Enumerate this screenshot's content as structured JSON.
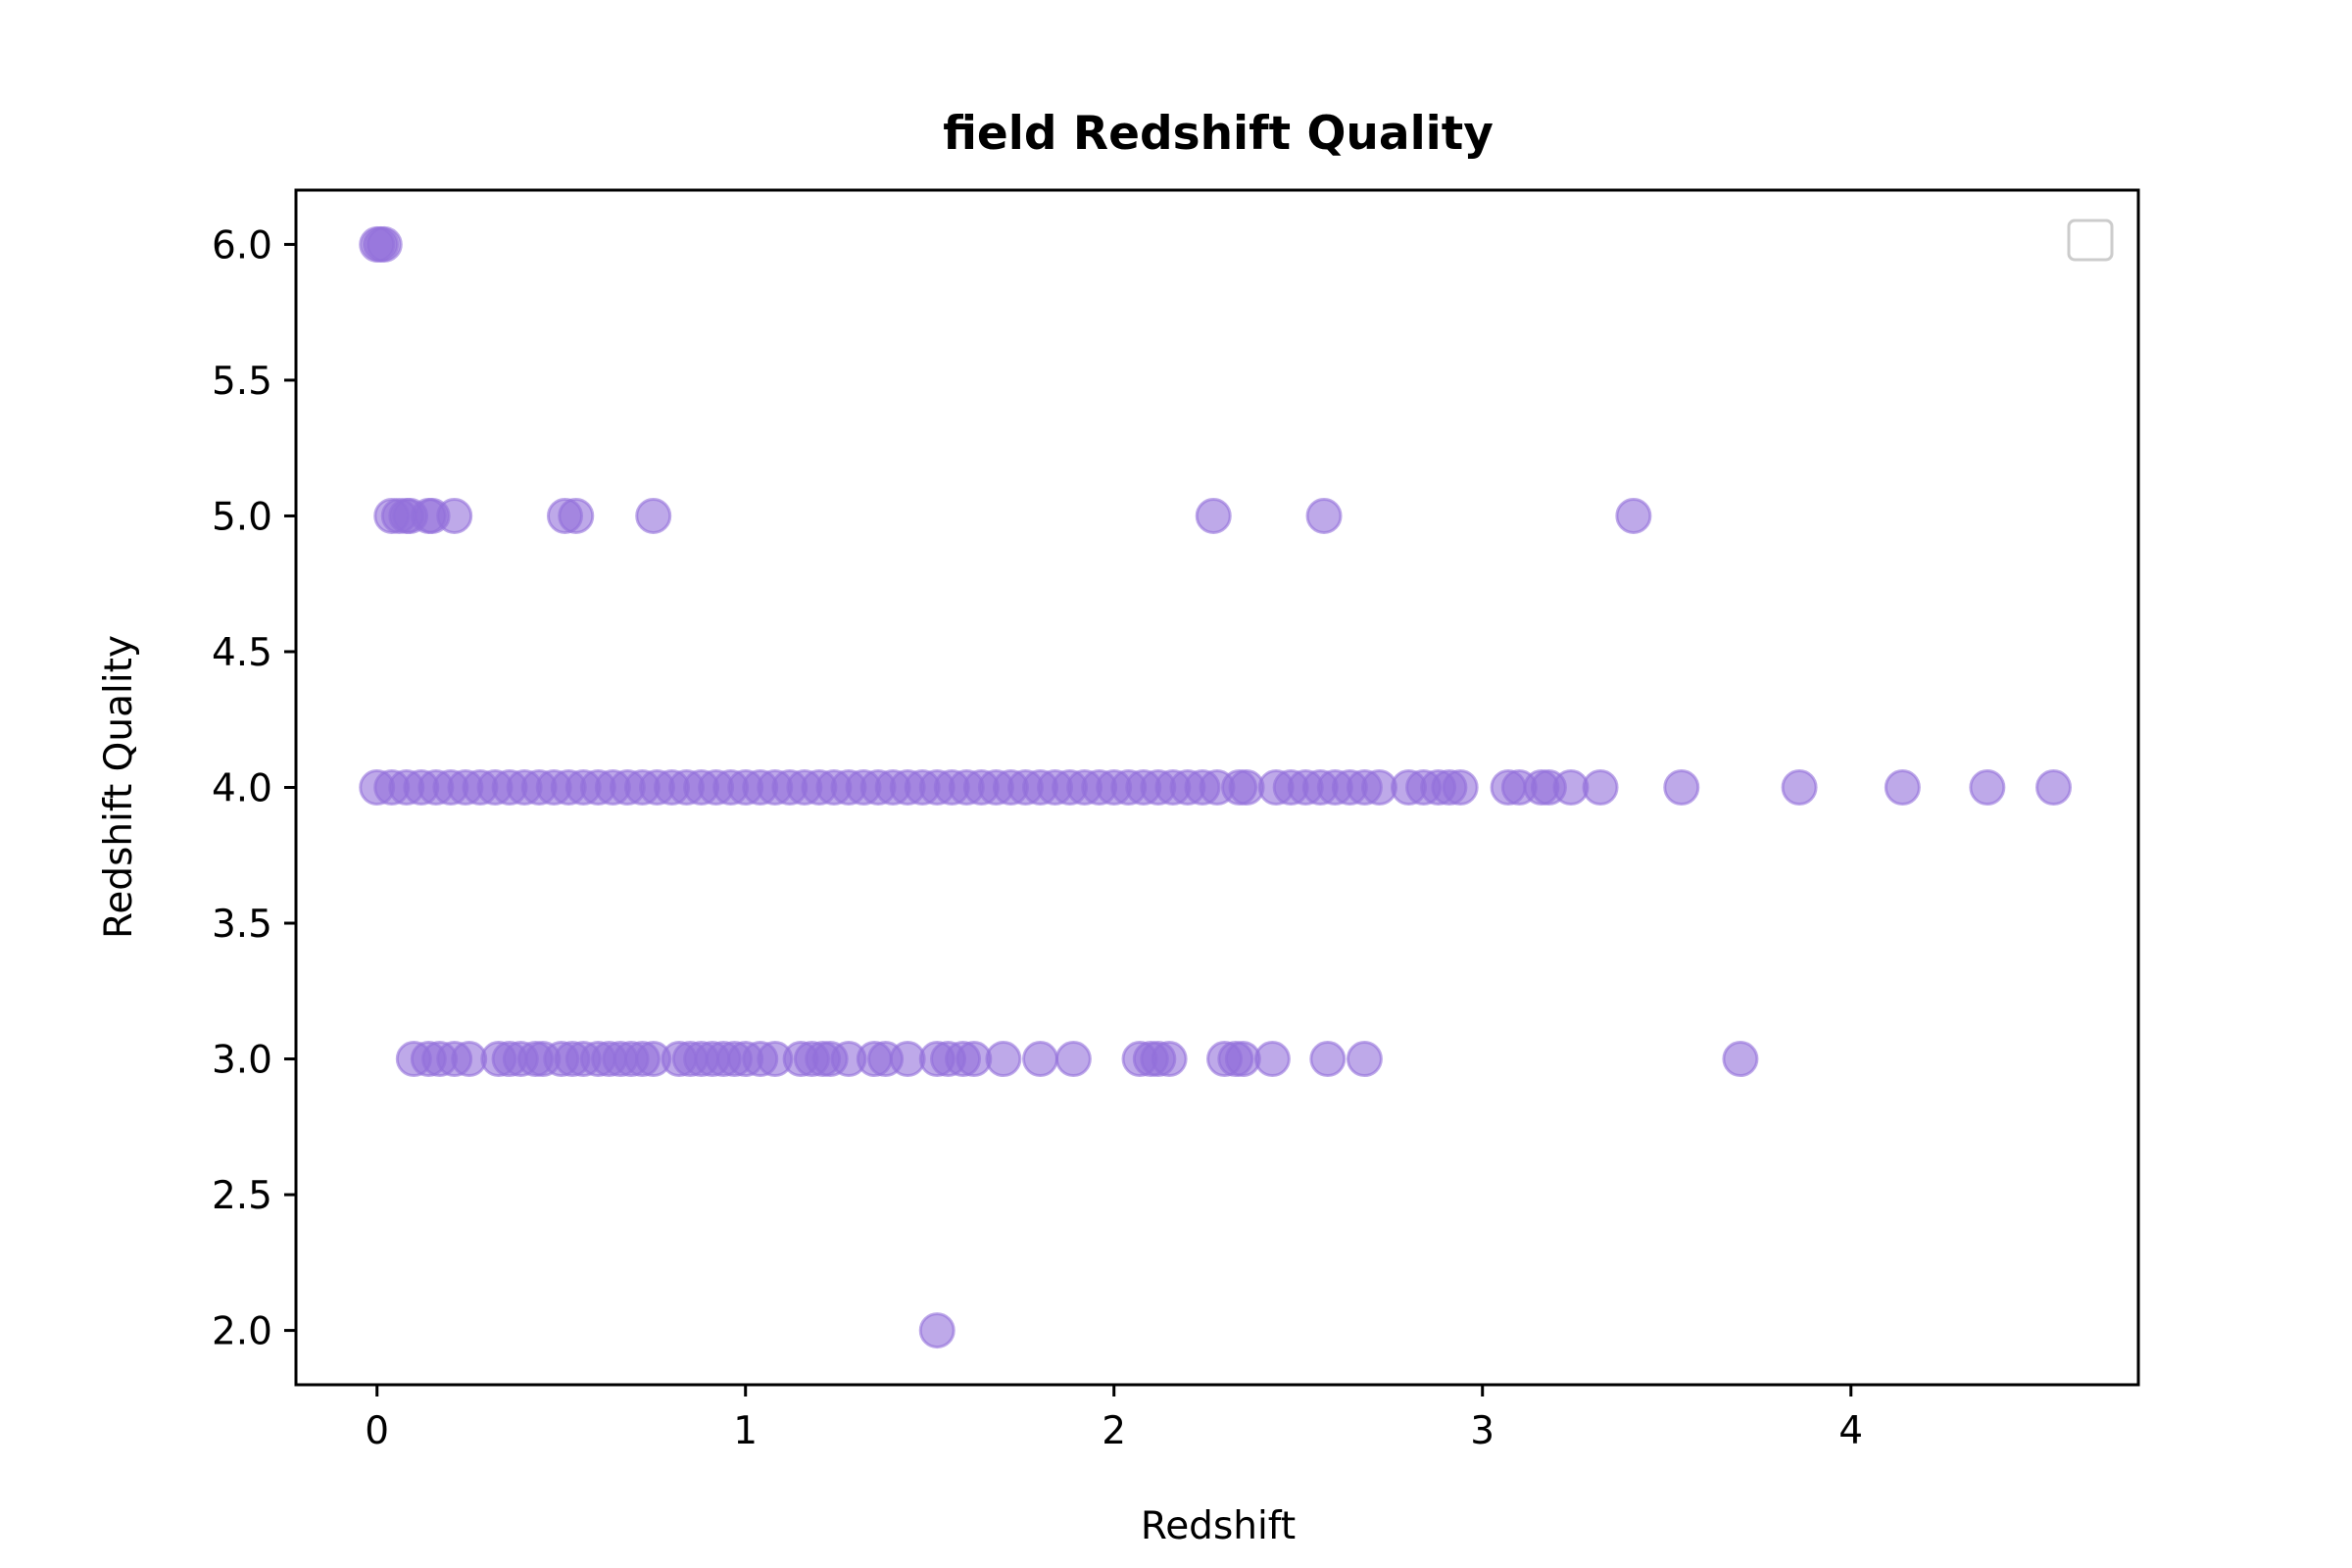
{
  "chart_data": {
    "type": "scatter",
    "title": "field Redshift Quality",
    "xlabel": "Redshift",
    "ylabel": "Redshift Quality",
    "xlim": [
      -0.22,
      4.78
    ],
    "ylim": [
      1.8,
      6.2
    ],
    "xticks": [
      0,
      1,
      2,
      3,
      4
    ],
    "yticks": [
      2.0,
      2.5,
      3.0,
      3.5,
      4.0,
      4.5,
      5.0,
      5.5,
      6.0
    ],
    "grid": false,
    "legend": {
      "position": "top-right",
      "entries": []
    },
    "marker_color": "#9370DB",
    "marker_alpha": 0.6,
    "points": [
      {
        "x": 0.0,
        "y": 6.0
      },
      {
        "x": 0.01,
        "y": 6.0
      },
      {
        "x": 0.02,
        "y": 6.0
      },
      {
        "x": 0.04,
        "y": 5.0
      },
      {
        "x": 0.06,
        "y": 5.0
      },
      {
        "x": 0.08,
        "y": 5.0
      },
      {
        "x": 0.09,
        "y": 5.0
      },
      {
        "x": 0.14,
        "y": 5.0
      },
      {
        "x": 0.15,
        "y": 5.0
      },
      {
        "x": 0.21,
        "y": 5.0
      },
      {
        "x": 0.51,
        "y": 5.0
      },
      {
        "x": 0.54,
        "y": 5.0
      },
      {
        "x": 0.75,
        "y": 5.0
      },
      {
        "x": 2.27,
        "y": 5.0
      },
      {
        "x": 2.57,
        "y": 5.0
      },
      {
        "x": 3.41,
        "y": 5.0
      },
      {
        "x": 0.0,
        "y": 4.0
      },
      {
        "x": 0.04,
        "y": 4.0
      },
      {
        "x": 0.08,
        "y": 4.0
      },
      {
        "x": 0.12,
        "y": 4.0
      },
      {
        "x": 0.16,
        "y": 4.0
      },
      {
        "x": 0.2,
        "y": 4.0
      },
      {
        "x": 0.24,
        "y": 4.0
      },
      {
        "x": 0.28,
        "y": 4.0
      },
      {
        "x": 0.32,
        "y": 4.0
      },
      {
        "x": 0.36,
        "y": 4.0
      },
      {
        "x": 0.4,
        "y": 4.0
      },
      {
        "x": 0.44,
        "y": 4.0
      },
      {
        "x": 0.48,
        "y": 4.0
      },
      {
        "x": 0.52,
        "y": 4.0
      },
      {
        "x": 0.56,
        "y": 4.0
      },
      {
        "x": 0.6,
        "y": 4.0
      },
      {
        "x": 0.64,
        "y": 4.0
      },
      {
        "x": 0.68,
        "y": 4.0
      },
      {
        "x": 0.72,
        "y": 4.0
      },
      {
        "x": 0.76,
        "y": 4.0
      },
      {
        "x": 0.8,
        "y": 4.0
      },
      {
        "x": 0.84,
        "y": 4.0
      },
      {
        "x": 0.88,
        "y": 4.0
      },
      {
        "x": 0.92,
        "y": 4.0
      },
      {
        "x": 0.96,
        "y": 4.0
      },
      {
        "x": 1.0,
        "y": 4.0
      },
      {
        "x": 1.04,
        "y": 4.0
      },
      {
        "x": 1.08,
        "y": 4.0
      },
      {
        "x": 1.12,
        "y": 4.0
      },
      {
        "x": 1.16,
        "y": 4.0
      },
      {
        "x": 1.2,
        "y": 4.0
      },
      {
        "x": 1.24,
        "y": 4.0
      },
      {
        "x": 1.28,
        "y": 4.0
      },
      {
        "x": 1.32,
        "y": 4.0
      },
      {
        "x": 1.36,
        "y": 4.0
      },
      {
        "x": 1.4,
        "y": 4.0
      },
      {
        "x": 1.44,
        "y": 4.0
      },
      {
        "x": 1.48,
        "y": 4.0
      },
      {
        "x": 1.52,
        "y": 4.0
      },
      {
        "x": 1.56,
        "y": 4.0
      },
      {
        "x": 1.6,
        "y": 4.0
      },
      {
        "x": 1.64,
        "y": 4.0
      },
      {
        "x": 1.68,
        "y": 4.0
      },
      {
        "x": 1.72,
        "y": 4.0
      },
      {
        "x": 1.76,
        "y": 4.0
      },
      {
        "x": 1.8,
        "y": 4.0
      },
      {
        "x": 1.84,
        "y": 4.0
      },
      {
        "x": 1.88,
        "y": 4.0
      },
      {
        "x": 1.92,
        "y": 4.0
      },
      {
        "x": 1.96,
        "y": 4.0
      },
      {
        "x": 2.0,
        "y": 4.0
      },
      {
        "x": 2.04,
        "y": 4.0
      },
      {
        "x": 2.08,
        "y": 4.0
      },
      {
        "x": 2.12,
        "y": 4.0
      },
      {
        "x": 2.16,
        "y": 4.0
      },
      {
        "x": 2.2,
        "y": 4.0
      },
      {
        "x": 2.24,
        "y": 4.0
      },
      {
        "x": 2.28,
        "y": 4.0
      },
      {
        "x": 2.34,
        "y": 4.0
      },
      {
        "x": 2.36,
        "y": 4.0
      },
      {
        "x": 2.44,
        "y": 4.0
      },
      {
        "x": 2.48,
        "y": 4.0
      },
      {
        "x": 2.52,
        "y": 4.0
      },
      {
        "x": 2.56,
        "y": 4.0
      },
      {
        "x": 2.6,
        "y": 4.0
      },
      {
        "x": 2.64,
        "y": 4.0
      },
      {
        "x": 2.68,
        "y": 4.0
      },
      {
        "x": 2.72,
        "y": 4.0
      },
      {
        "x": 2.8,
        "y": 4.0
      },
      {
        "x": 2.84,
        "y": 4.0
      },
      {
        "x": 2.88,
        "y": 4.0
      },
      {
        "x": 2.91,
        "y": 4.0
      },
      {
        "x": 2.94,
        "y": 4.0
      },
      {
        "x": 3.07,
        "y": 4.0
      },
      {
        "x": 3.1,
        "y": 4.0
      },
      {
        "x": 3.16,
        "y": 4.0
      },
      {
        "x": 3.18,
        "y": 4.0
      },
      {
        "x": 3.24,
        "y": 4.0
      },
      {
        "x": 3.32,
        "y": 4.0
      },
      {
        "x": 3.54,
        "y": 4.0
      },
      {
        "x": 3.86,
        "y": 4.0
      },
      {
        "x": 4.14,
        "y": 4.0
      },
      {
        "x": 4.37,
        "y": 4.0
      },
      {
        "x": 4.55,
        "y": 4.0
      },
      {
        "x": 0.1,
        "y": 3.0
      },
      {
        "x": 0.14,
        "y": 3.0
      },
      {
        "x": 0.17,
        "y": 3.0
      },
      {
        "x": 0.21,
        "y": 3.0
      },
      {
        "x": 0.25,
        "y": 3.0
      },
      {
        "x": 0.33,
        "y": 3.0
      },
      {
        "x": 0.36,
        "y": 3.0
      },
      {
        "x": 0.39,
        "y": 3.0
      },
      {
        "x": 0.43,
        "y": 3.0
      },
      {
        "x": 0.45,
        "y": 3.0
      },
      {
        "x": 0.5,
        "y": 3.0
      },
      {
        "x": 0.53,
        "y": 3.0
      },
      {
        "x": 0.56,
        "y": 3.0
      },
      {
        "x": 0.6,
        "y": 3.0
      },
      {
        "x": 0.63,
        "y": 3.0
      },
      {
        "x": 0.66,
        "y": 3.0
      },
      {
        "x": 0.69,
        "y": 3.0
      },
      {
        "x": 0.72,
        "y": 3.0
      },
      {
        "x": 0.75,
        "y": 3.0
      },
      {
        "x": 0.82,
        "y": 3.0
      },
      {
        "x": 0.85,
        "y": 3.0
      },
      {
        "x": 0.88,
        "y": 3.0
      },
      {
        "x": 0.91,
        "y": 3.0
      },
      {
        "x": 0.94,
        "y": 3.0
      },
      {
        "x": 0.97,
        "y": 3.0
      },
      {
        "x": 1.0,
        "y": 3.0
      },
      {
        "x": 1.04,
        "y": 3.0
      },
      {
        "x": 1.08,
        "y": 3.0
      },
      {
        "x": 1.15,
        "y": 3.0
      },
      {
        "x": 1.18,
        "y": 3.0
      },
      {
        "x": 1.21,
        "y": 3.0
      },
      {
        "x": 1.23,
        "y": 3.0
      },
      {
        "x": 1.28,
        "y": 3.0
      },
      {
        "x": 1.35,
        "y": 3.0
      },
      {
        "x": 1.38,
        "y": 3.0
      },
      {
        "x": 1.44,
        "y": 3.0
      },
      {
        "x": 1.52,
        "y": 3.0
      },
      {
        "x": 1.55,
        "y": 3.0
      },
      {
        "x": 1.59,
        "y": 3.0
      },
      {
        "x": 1.62,
        "y": 3.0
      },
      {
        "x": 1.7,
        "y": 3.0
      },
      {
        "x": 1.8,
        "y": 3.0
      },
      {
        "x": 1.89,
        "y": 3.0
      },
      {
        "x": 2.07,
        "y": 3.0
      },
      {
        "x": 2.1,
        "y": 3.0
      },
      {
        "x": 2.12,
        "y": 3.0
      },
      {
        "x": 2.15,
        "y": 3.0
      },
      {
        "x": 2.3,
        "y": 3.0
      },
      {
        "x": 2.33,
        "y": 3.0
      },
      {
        "x": 2.35,
        "y": 3.0
      },
      {
        "x": 2.43,
        "y": 3.0
      },
      {
        "x": 2.58,
        "y": 3.0
      },
      {
        "x": 2.68,
        "y": 3.0
      },
      {
        "x": 3.7,
        "y": 3.0
      },
      {
        "x": 1.52,
        "y": 2.0
      }
    ]
  }
}
